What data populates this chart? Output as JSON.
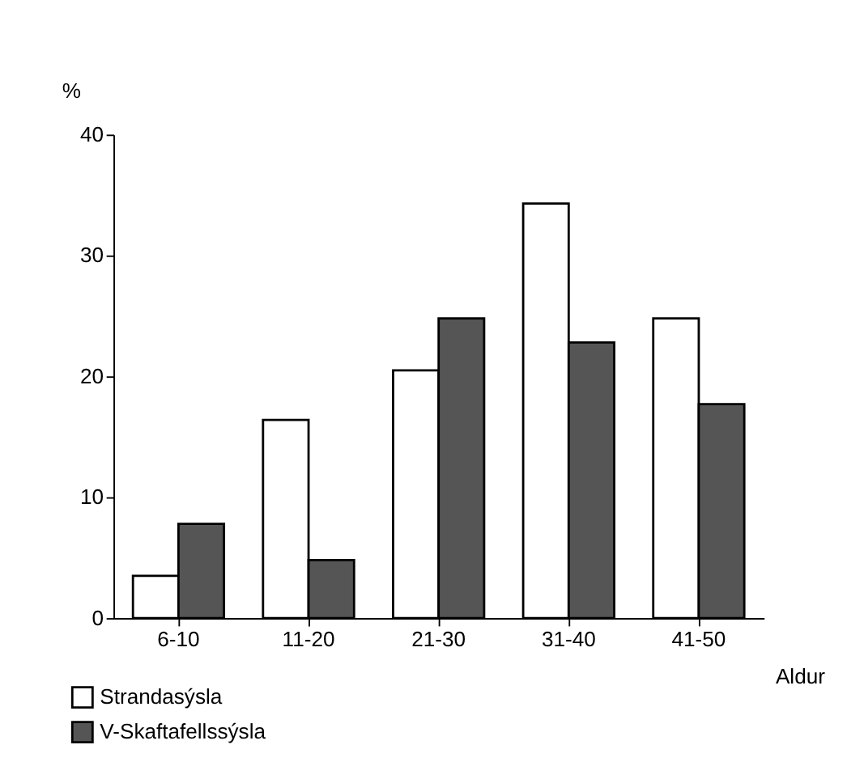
{
  "chart_data": {
    "type": "bar",
    "ylabel": "%",
    "xlabel": "Aldur",
    "categories": [
      "6-10",
      "11-20",
      "21-30",
      "31-40",
      "41-50"
    ],
    "series": [
      {
        "name": "Strandasýsla",
        "color": "#ffffff",
        "values": [
          3.5,
          16.4,
          20.5,
          34.3,
          24.8
        ]
      },
      {
        "name": "V-Skaftafellssýsla",
        "color": "#555555",
        "values": [
          7.8,
          4.8,
          24.8,
          22.8,
          17.7
        ]
      }
    ],
    "ylim": [
      0,
      40
    ],
    "yticks": [
      0,
      10,
      20,
      30,
      40
    ],
    "grid": false,
    "legend": "bottom left"
  }
}
